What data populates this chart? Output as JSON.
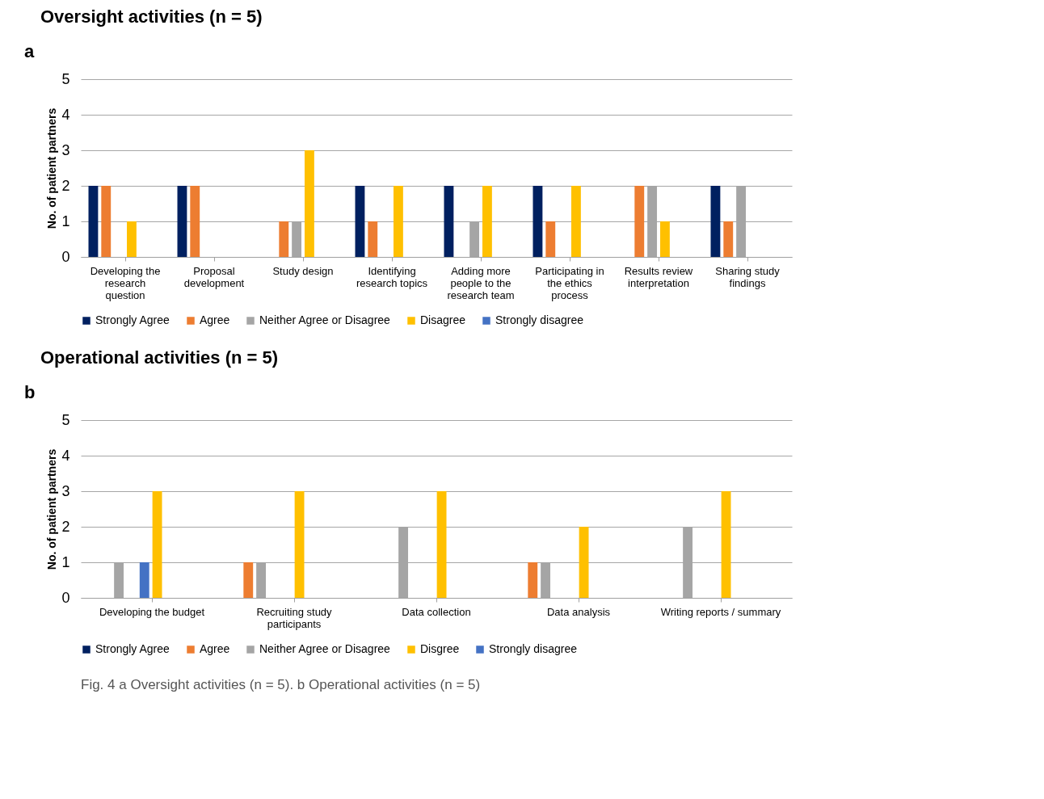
{
  "chart_data": [
    {
      "type": "bar",
      "title": "Oversight activities (n = 5)",
      "ylabel": "No. of patient partners",
      "categories": [
        "Developing the research question",
        "Proposal development",
        "Study design",
        "Identifying research topics",
        "Adding more people to the research team",
        "Participating in the ethics process",
        "Results review interpretation",
        "Sharing study findings"
      ],
      "series": [
        {
          "name": "Strongly Agree",
          "color": "#002060",
          "values": [
            2,
            2,
            0,
            2,
            2,
            2,
            0,
            2
          ]
        },
        {
          "name": "Agree",
          "color": "#ed7d31",
          "values": [
            2,
            2,
            1,
            1,
            0,
            1,
            2,
            1
          ]
        },
        {
          "name": "Neither Agree or Disagree",
          "color": "#a5a5a5",
          "values": [
            0,
            0,
            1,
            0,
            1,
            0,
            2,
            2
          ]
        },
        {
          "name": "Disagree",
          "color": "#ffc000",
          "values": [
            1,
            0,
            3,
            2,
            2,
            2,
            1,
            0
          ]
        },
        {
          "name": "Strongly disagree",
          "color": "#4472c4",
          "values": [
            0,
            0,
            0,
            0,
            0,
            0,
            0,
            0
          ]
        }
      ],
      "ylim": [
        0,
        5
      ],
      "yticks": [
        0,
        1,
        2,
        3,
        4,
        5
      ],
      "grid": "y",
      "legend": "bottom",
      "annotations": [
        "a"
      ]
    },
    {
      "type": "bar",
      "title": "Operational activities (n = 5)",
      "ylabel": "No. of patient partners",
      "categories": [
        "Developing the budget",
        "Recruiting study participants",
        "Data collection",
        "Data analysis",
        "Writing reports / summary"
      ],
      "series": [
        {
          "name": "Strongly Agree",
          "color": "#002060",
          "values": [
            0,
            0,
            0,
            0,
            0
          ]
        },
        {
          "name": "Agree",
          "color": "#ed7d31",
          "values": [
            0,
            1,
            0,
            1,
            0
          ]
        },
        {
          "name": "Neither Agree or Disagree",
          "color": "#a5a5a5",
          "values": [
            1,
            1,
            2,
            1,
            2
          ]
        },
        {
          "name": "Disgree",
          "color": "#ffc000",
          "values": [
            3,
            3,
            3,
            2,
            3
          ]
        },
        {
          "name": "Strongly disagree",
          "color": "#4472c4",
          "values": [
            1,
            0,
            0,
            0,
            0
          ]
        }
      ],
      "ylim": [
        0,
        5
      ],
      "yticks": [
        0,
        1,
        2,
        3,
        4,
        5
      ],
      "grid": "y",
      "legend": "bottom",
      "annotations": [
        "b",
        "Fig. 4 a Oversight activities (n = 5). b Operational activities (n = 5)"
      ]
    }
  ]
}
